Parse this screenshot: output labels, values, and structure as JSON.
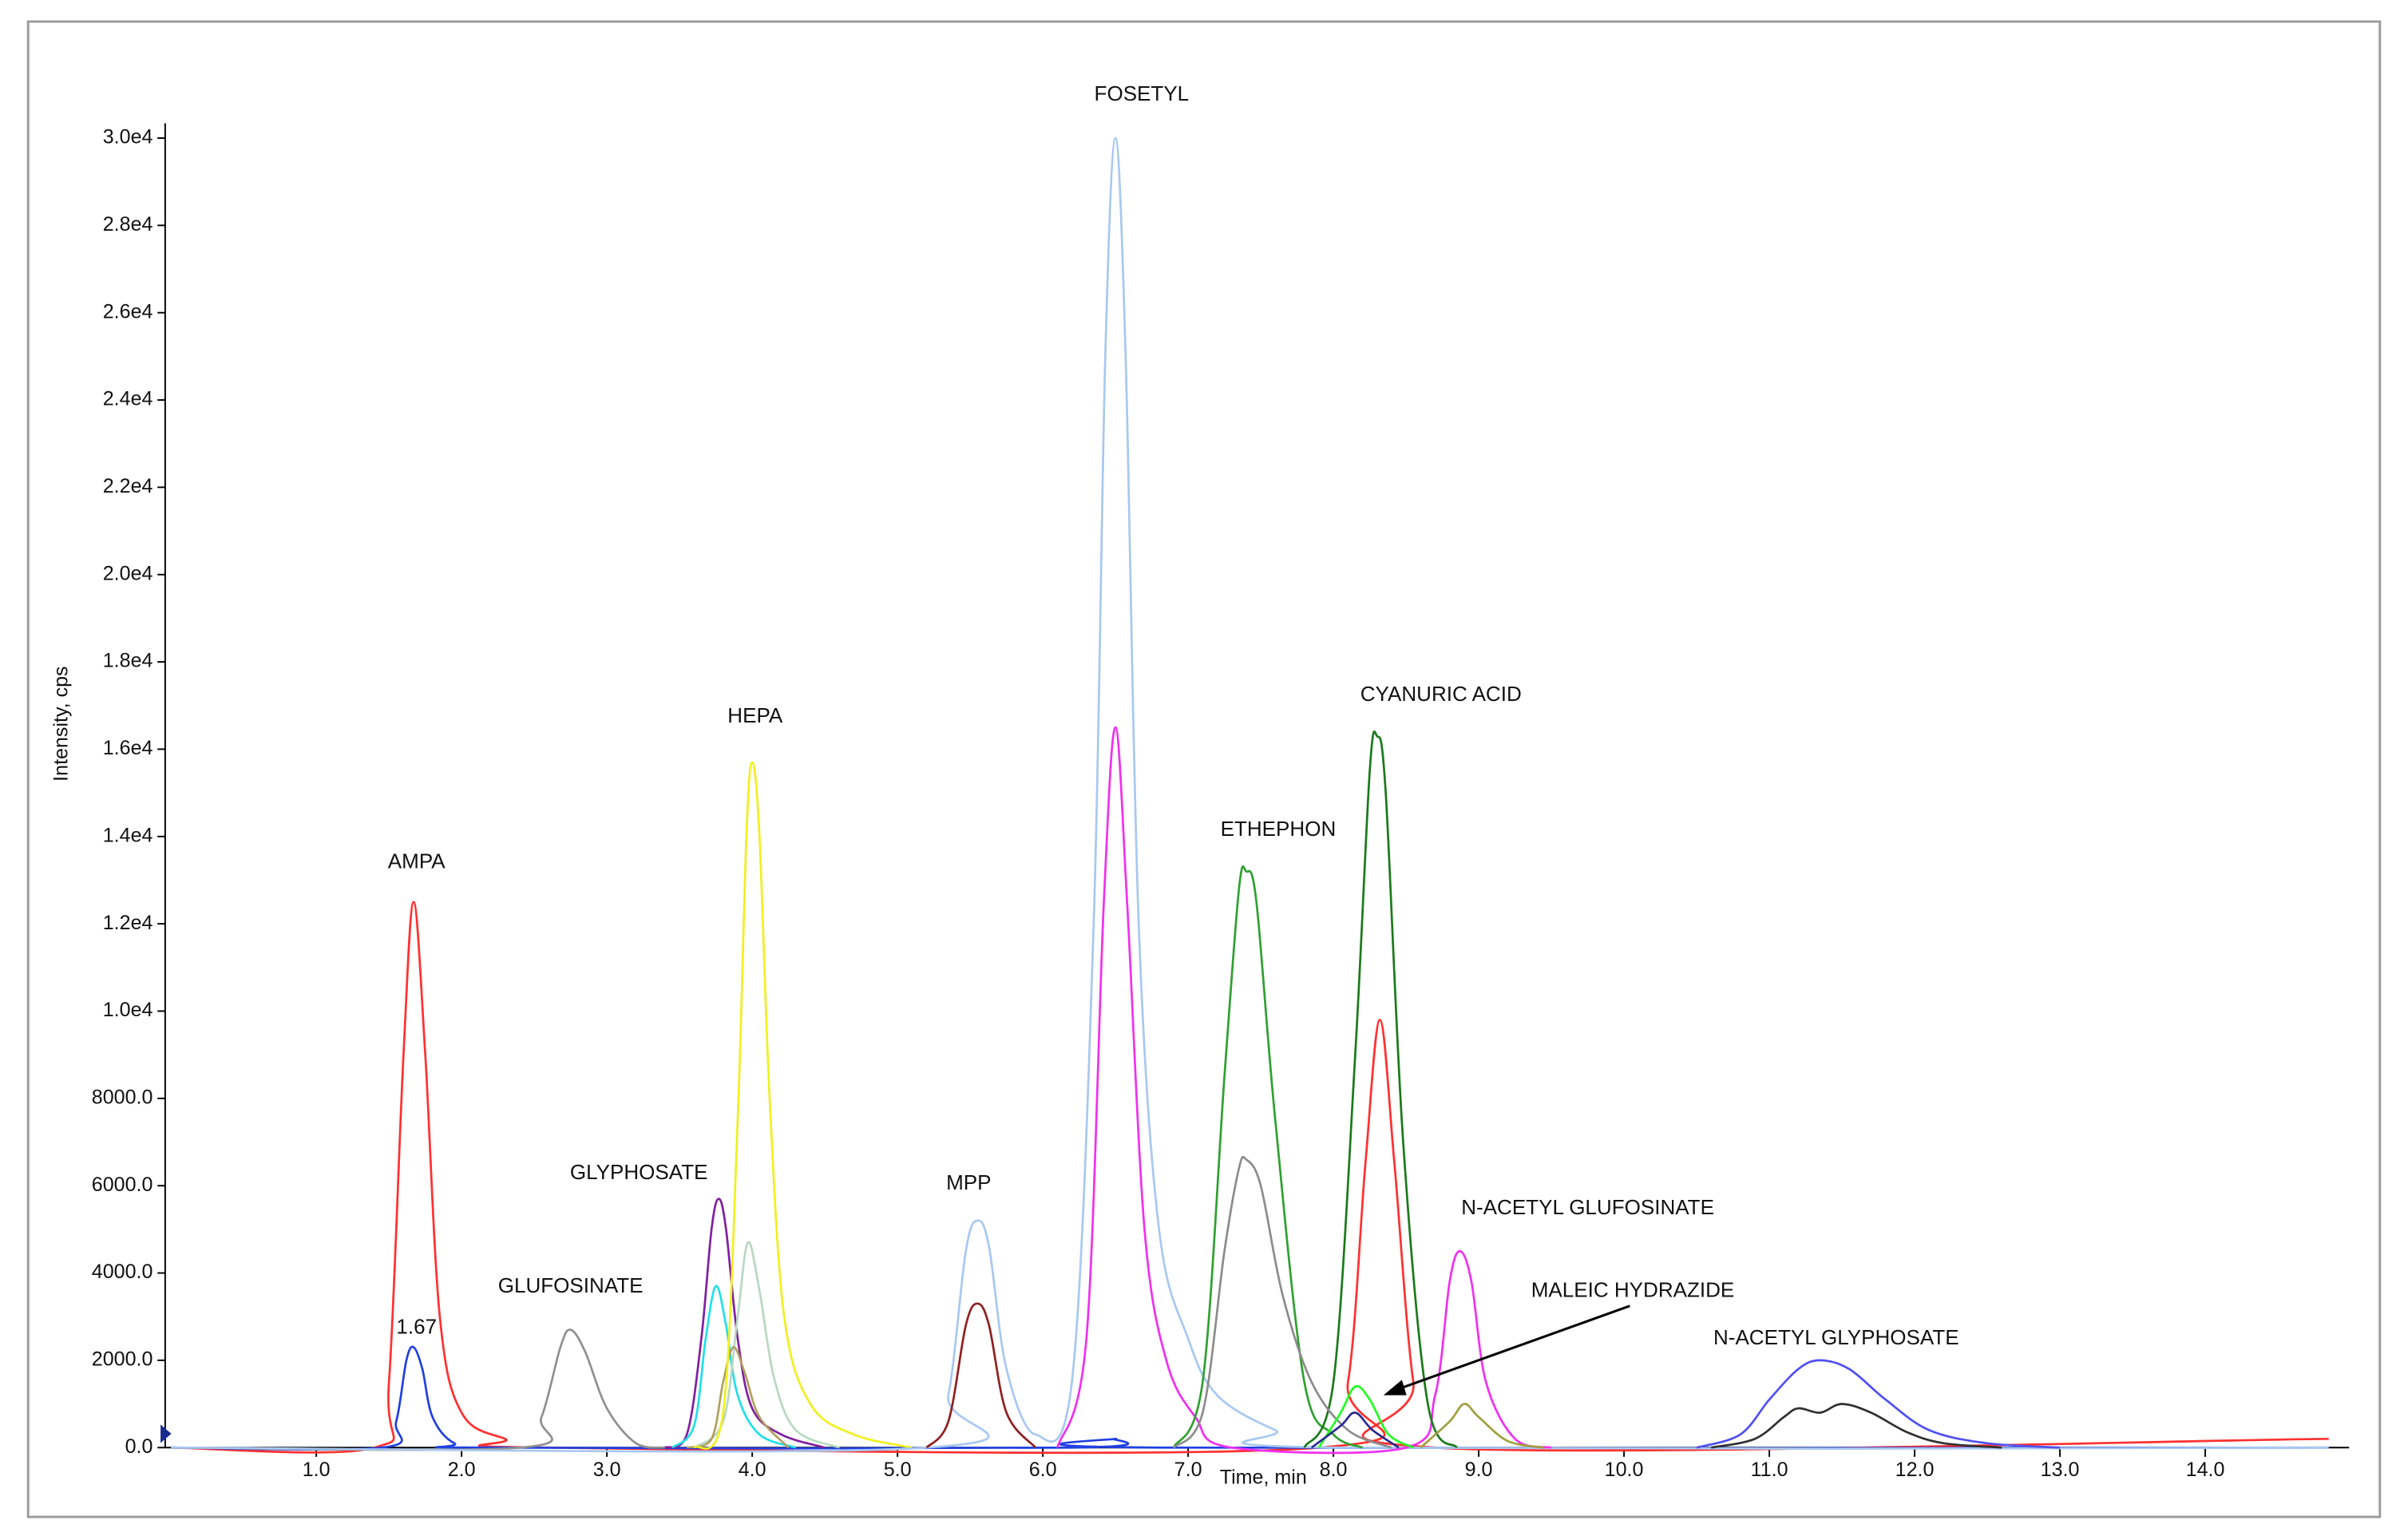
{
  "chart_data": {
    "type": "line",
    "xlabel": "Time, min",
    "ylabel": "Intensity, cps",
    "xlim": [
      -0.04,
      14.99
    ],
    "ylim": [
      0,
      30200
    ],
    "xticks": [
      {
        "value": 1,
        "label": "1.0"
      },
      {
        "value": 2,
        "label": "2.0"
      },
      {
        "value": 3,
        "label": "3.0"
      },
      {
        "value": 4,
        "label": "4.0"
      },
      {
        "value": 5,
        "label": "5.0"
      },
      {
        "value": 6,
        "label": "6.0"
      },
      {
        "value": 7,
        "label": "7.0"
      },
      {
        "value": 8,
        "label": "8.0"
      },
      {
        "value": 9,
        "label": "9.0"
      },
      {
        "value": 10,
        "label": "10.0"
      },
      {
        "value": 11,
        "label": "11.0"
      },
      {
        "value": 12,
        "label": "12.0"
      },
      {
        "value": 13,
        "label": "13.0"
      },
      {
        "value": 14,
        "label": "14.0"
      }
    ],
    "yticks": [
      {
        "value": 0,
        "label": "0.0"
      },
      {
        "value": 2000,
        "label": "2000.0"
      },
      {
        "value": 4000,
        "label": "4000.0"
      },
      {
        "value": 6000,
        "label": "6000.0"
      },
      {
        "value": 8000,
        "label": "8000.0"
      },
      {
        "value": 10000,
        "label": "1.0e4"
      },
      {
        "value": 12000,
        "label": "1.2e4"
      },
      {
        "value": 14000,
        "label": "1.4e4"
      },
      {
        "value": 16000,
        "label": "1.6e4"
      },
      {
        "value": 18000,
        "label": "1.8e4"
      },
      {
        "value": 20000,
        "label": "2.0e4"
      },
      {
        "value": 22000,
        "label": "2.2e4"
      },
      {
        "value": 24000,
        "label": "2.4e4"
      },
      {
        "value": 26000,
        "label": "2.6e4"
      },
      {
        "value": 28000,
        "label": "2.8e4"
      },
      {
        "value": 30000,
        "label": "3.0e4"
      }
    ],
    "series": [
      {
        "color": "#ff3030",
        "x": [
          0,
          1.4,
          1.5,
          1.6,
          1.67,
          1.75,
          1.85,
          2.0,
          2.3,
          2.6,
          7.9,
          8.1,
          8.22,
          8.32,
          8.42,
          8.55,
          8.7,
          14.85
        ],
        "values": [
          0,
          0,
          1500,
          9000,
          12500,
          9000,
          3000,
          800,
          200,
          0,
          0,
          1500,
          6500,
          9800,
          6500,
          1500,
          0,
          200
        ]
      },
      {
        "color": "#2040e0",
        "x": [
          0,
          1.45,
          1.55,
          1.62,
          1.67,
          1.73,
          1.8,
          1.95,
          2.2,
          6.2,
          6.5,
          6.8,
          14.85
        ],
        "values": [
          0,
          0,
          600,
          2000,
          2300,
          1800,
          700,
          100,
          0,
          0,
          200,
          0,
          0
        ]
      },
      {
        "color": "#909090",
        "x": [
          0,
          2.4,
          2.55,
          2.68,
          2.75,
          2.85,
          3.0,
          3.2,
          3.4
        ],
        "values": [
          0,
          0,
          700,
          2300,
          2700,
          2200,
          900,
          100,
          0
        ]
      },
      {
        "color": "#8020a0",
        "x": [
          3.4,
          3.55,
          3.65,
          3.72,
          3.77,
          3.82,
          3.9,
          4.0,
          4.2,
          4.5
        ],
        "values": [
          0,
          300,
          2500,
          5000,
          5700,
          5000,
          2500,
          900,
          300,
          0
        ]
      },
      {
        "color": "#20e0e8",
        "x": [
          3.45,
          3.6,
          3.68,
          3.75,
          3.82,
          3.9,
          4.05,
          4.3
        ],
        "values": [
          0,
          500,
          2500,
          3700,
          2800,
          1200,
          300,
          0
        ]
      },
      {
        "color": "#b8d8c0",
        "x": [
          3.6,
          3.8,
          3.9,
          3.97,
          4.05,
          4.15,
          4.3,
          4.6
        ],
        "values": [
          0,
          600,
          3000,
          4700,
          3600,
          1600,
          400,
          0
        ]
      },
      {
        "color": "#b0a060",
        "x": [
          3.55,
          3.72,
          3.8,
          3.87,
          3.95,
          4.05,
          4.25
        ],
        "values": [
          0,
          200,
          1500,
          2300,
          1700,
          700,
          0
        ]
      },
      {
        "color": "#f0f020",
        "x": [
          3.6,
          3.8,
          3.9,
          3.96,
          4.0,
          4.05,
          4.12,
          4.22,
          4.4,
          4.7,
          5.1
        ],
        "values": [
          0,
          800,
          7500,
          14000,
          15700,
          14000,
          8000,
          3000,
          1000,
          300,
          0
        ]
      },
      {
        "color": "#a8c8f0",
        "x": [
          0,
          5.2,
          5.35,
          5.47,
          5.55,
          5.63,
          5.75,
          5.95,
          6.2,
          6.35,
          6.43,
          6.5,
          6.57,
          6.66,
          6.8,
          7.0,
          7.2,
          7.6,
          8.0,
          14.85
        ],
        "values": [
          0,
          0,
          1200,
          4500,
          5200,
          4600,
          1800,
          300,
          1500,
          12000,
          25000,
          30000,
          25000,
          12000,
          5000,
          2500,
          1200,
          400,
          0,
          0
        ]
      },
      {
        "color": "#902020",
        "x": [
          5.2,
          5.35,
          5.47,
          5.55,
          5.63,
          5.75,
          5.95
        ],
        "values": [
          0,
          600,
          2800,
          3300,
          2800,
          800,
          0
        ]
      },
      {
        "color": "#f030f0",
        "x": [
          6.1,
          6.3,
          6.42,
          6.5,
          6.58,
          6.7,
          6.85,
          7.05,
          7.3,
          8.5,
          8.7,
          8.8,
          8.87,
          8.95,
          9.05,
          9.25,
          9.5
        ],
        "values": [
          0,
          2500,
          12500,
          16500,
          12500,
          5000,
          2000,
          700,
          0,
          0,
          1200,
          3800,
          4500,
          3800,
          1500,
          200,
          0
        ]
      },
      {
        "color": "#30a030",
        "x": [
          6.9,
          7.1,
          7.25,
          7.35,
          7.4,
          7.47,
          7.6,
          7.8,
          8.0,
          8.2
        ],
        "values": [
          0,
          1500,
          8500,
          12800,
          13200,
          12500,
          7500,
          1500,
          300,
          0
        ]
      },
      {
        "color": "#1a7a1a",
        "x": [
          7.8,
          8.0,
          8.15,
          8.25,
          8.3,
          8.36,
          8.48,
          8.65,
          8.85
        ],
        "values": [
          0,
          1500,
          9000,
          15500,
          16300,
          15000,
          7000,
          1000,
          0
        ]
      },
      {
        "color": "#8c8c8c",
        "x": [
          6.9,
          7.1,
          7.25,
          7.35,
          7.4,
          7.5,
          7.65,
          7.85,
          8.1,
          8.4
        ],
        "values": [
          0,
          800,
          4500,
          6400,
          6600,
          6000,
          3500,
          1500,
          400,
          0
        ]
      },
      {
        "color": "#20ff20",
        "x": [
          7.9,
          8.05,
          8.15,
          8.25,
          8.38,
          8.55
        ],
        "values": [
          0,
          800,
          1400,
          1100,
          300,
          0
        ]
      },
      {
        "color": "#2a2a90",
        "x": [
          7.85,
          8.05,
          8.15,
          8.27,
          8.45
        ],
        "values": [
          0,
          500,
          800,
          400,
          0
        ]
      },
      {
        "color": "#a0a040",
        "x": [
          8.6,
          8.8,
          8.9,
          9.0,
          9.2,
          9.45
        ],
        "values": [
          0,
          600,
          1000,
          700,
          150,
          0
        ]
      },
      {
        "color": "#303030",
        "x": [
          10.6,
          10.9,
          11.1,
          11.2,
          11.35,
          11.5,
          11.7,
          11.95,
          12.2,
          12.6
        ],
        "values": [
          0,
          200,
          700,
          900,
          800,
          1000,
          800,
          350,
          100,
          0
        ]
      },
      {
        "color": "#5050f0",
        "x": [
          10.5,
          10.8,
          11.0,
          11.2,
          11.35,
          11.55,
          11.8,
          12.1,
          12.5,
          13.0
        ],
        "values": [
          0,
          300,
          1100,
          1800,
          2000,
          1800,
          1100,
          400,
          100,
          0
        ]
      }
    ],
    "annotations": [
      {
        "text": "AMPA",
        "x": 1.69,
        "y": 13400
      },
      {
        "text": "1.67",
        "x": 1.69,
        "y": 2740
      },
      {
        "text": "GLUFOSINATE",
        "x": 2.75,
        "y": 3680
      },
      {
        "text": "GLYPHOSATE",
        "x": 3.22,
        "y": 6280
      },
      {
        "text": "HEPA",
        "x": 4.02,
        "y": 16740
      },
      {
        "text": "MPP",
        "x": 5.49,
        "y": 6040
      },
      {
        "text": "FOSETYL",
        "x": 6.68,
        "y": 30980
      },
      {
        "text": "ETHEPHON",
        "x": 7.62,
        "y": 14140
      },
      {
        "text": "CYANURIC ACID",
        "x": 8.74,
        "y": 17230
      },
      {
        "text": "N-ACETYL GLUFOSINATE",
        "x": 9.75,
        "y": 5470
      },
      {
        "text": "MALEIC HYDRAZIDE",
        "x": 10.06,
        "y": 3580
      },
      {
        "text": "N-ACETYL GLYPHOSATE",
        "x": 11.46,
        "y": 2490
      }
    ]
  }
}
